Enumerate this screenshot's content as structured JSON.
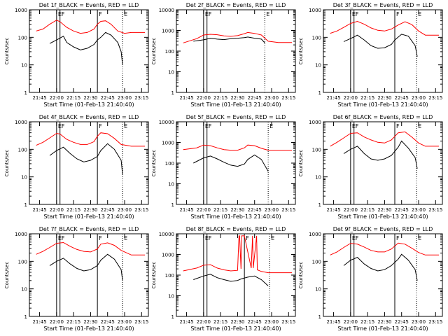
{
  "figure": {
    "x_tick_labels": [
      "21:45",
      "22:00",
      "22:15",
      "22:30",
      "22:45",
      "23:00",
      "23:15"
    ],
    "y_tick_labels": [
      "1",
      "10",
      "100",
      "1000",
      "10000"
    ],
    "ylabel": "Counts/sec",
    "xlabel": "Start Time (01-Feb-13 21:40:40)",
    "line_colors": {
      "events": "#000000",
      "lld": "#ff0000"
    }
  },
  "chart_data": [
    {
      "type": "line",
      "title": "Det 1f_BLACK = Events, RED = LLD",
      "markers": [
        {
          "t": 22.0,
          "label": "E"
        },
        {
          "t": 22.05,
          "label": "F"
        },
        {
          "t": 22.6,
          "label": "F"
        },
        {
          "t": 22.97,
          "label": "E"
        }
      ],
      "xlim": [
        21.6,
        23.35
      ],
      "ylim": [
        1,
        1000
      ],
      "ylabel": "Counts/sec",
      "xlabel": "Start Time (01-Feb-13 21:40:40)",
      "series": [
        {
          "name": "Events",
          "color": "#000000",
          "t": [
            21.9,
            22.0,
            22.1,
            22.15,
            22.25,
            22.35,
            22.45,
            22.55,
            22.6,
            22.65,
            22.72,
            22.8,
            22.9,
            22.95,
            22.97
          ],
          "values": [
            60,
            80,
            110,
            65,
            45,
            35,
            40,
            55,
            80,
            100,
            150,
            120,
            65,
            30,
            10
          ]
        },
        {
          "name": "LLD",
          "color": "#ff0000",
          "t": [
            21.7,
            21.8,
            21.9,
            22.0,
            22.05,
            22.15,
            22.25,
            22.35,
            22.45,
            22.55,
            22.6,
            22.65,
            22.72,
            22.8,
            22.9,
            23.0,
            23.1,
            23.3
          ],
          "values": [
            170,
            200,
            300,
            420,
            370,
            230,
            170,
            140,
            150,
            200,
            300,
            380,
            400,
            300,
            170,
            140,
            150,
            150
          ]
        }
      ]
    },
    {
      "type": "line",
      "title": "Det 2f_BLACK = Events, RED = LLD",
      "markers": [
        {
          "t": 22.0,
          "label": "E"
        },
        {
          "t": 22.05,
          "label": "F"
        },
        {
          "t": 22.9,
          "label": "E"
        }
      ],
      "xlim": [
        21.6,
        23.35
      ],
      "ylim": [
        1,
        10000
      ],
      "ylabel": "Counts/sec",
      "xlabel": "Start Time (01-Feb-13 21:40:40)",
      "series": [
        {
          "name": "Events",
          "color": "#000000",
          "t": [
            21.85,
            22.0,
            22.1,
            22.2,
            22.3,
            22.4,
            22.5,
            22.6,
            22.65,
            22.75,
            22.85,
            22.9
          ],
          "values": [
            300,
            350,
            420,
            380,
            360,
            400,
            420,
            450,
            480,
            420,
            380,
            250
          ]
        },
        {
          "name": "LLD",
          "color": "#ff0000",
          "t": [
            21.7,
            21.9,
            22.0,
            22.1,
            22.2,
            22.3,
            22.4,
            22.5,
            22.6,
            22.65,
            22.75,
            22.85,
            22.95,
            23.1,
            23.3
          ],
          "values": [
            250,
            400,
            600,
            650,
            620,
            550,
            520,
            560,
            700,
            800,
            720,
            600,
            300,
            260,
            260
          ]
        }
      ]
    },
    {
      "type": "line",
      "title": "Det 3f_BLACK = Events, RED = LLD",
      "markers": [
        {
          "t": 22.0,
          "label": "E"
        },
        {
          "t": 22.05,
          "label": "F"
        },
        {
          "t": 22.65,
          "label": "F"
        },
        {
          "t": 22.97,
          "label": "E"
        }
      ],
      "xlim": [
        21.6,
        23.35
      ],
      "ylim": [
        1,
        1000
      ],
      "ylabel": "Counts/sec",
      "xlabel": "Start Time (01-Feb-13 21:40:40)",
      "series": [
        {
          "name": "Events",
          "color": "#000000",
          "t": [
            21.9,
            22.0,
            22.1,
            22.2,
            22.3,
            22.4,
            22.5,
            22.6,
            22.65,
            22.75,
            22.85,
            22.95,
            22.98
          ],
          "values": [
            70,
            90,
            120,
            80,
            50,
            40,
            42,
            55,
            80,
            130,
            110,
            50,
            20
          ]
        },
        {
          "name": "LLD",
          "color": "#ff0000",
          "t": [
            21.7,
            21.8,
            21.9,
            22.0,
            22.1,
            22.2,
            22.3,
            22.4,
            22.5,
            22.6,
            22.7,
            22.8,
            22.9,
            23.0,
            23.1,
            23.3
          ],
          "values": [
            140,
            170,
            230,
            320,
            380,
            300,
            220,
            180,
            170,
            200,
            280,
            370,
            290,
            170,
            120,
            120
          ]
        }
      ]
    },
    {
      "type": "line",
      "title": "Det 4f_BLACK = Events, RED = LLD",
      "markers": [
        {
          "t": 22.0,
          "label": "E"
        },
        {
          "t": 22.05,
          "label": "F"
        },
        {
          "t": 22.6,
          "label": "F"
        },
        {
          "t": 22.97,
          "label": "E"
        }
      ],
      "xlim": [
        21.6,
        23.35
      ],
      "ylim": [
        1,
        1000
      ],
      "ylabel": "Counts/sec",
      "xlabel": "Start Time (01-Feb-13 21:40:40)",
      "series": [
        {
          "name": "Events",
          "color": "#000000",
          "t": [
            21.9,
            22.0,
            22.1,
            22.2,
            22.3,
            22.4,
            22.5,
            22.6,
            22.65,
            22.75,
            22.85,
            22.95,
            22.97
          ],
          "values": [
            60,
            90,
            120,
            70,
            45,
            35,
            40,
            55,
            90,
            160,
            100,
            40,
            12
          ]
        },
        {
          "name": "LLD",
          "color": "#ff0000",
          "t": [
            21.7,
            21.8,
            21.9,
            22.0,
            22.05,
            22.15,
            22.25,
            22.35,
            22.45,
            22.55,
            22.6,
            22.65,
            22.75,
            22.85,
            22.95,
            23.1,
            23.3
          ],
          "values": [
            140,
            180,
            260,
            380,
            360,
            230,
            180,
            150,
            150,
            190,
            300,
            400,
            370,
            250,
            150,
            130,
            130
          ]
        }
      ]
    },
    {
      "type": "line",
      "title": "Det 5f_BLACK = Events, RED = LLD",
      "markers": [
        {
          "t": 22.0,
          "label": "E"
        },
        {
          "t": 22.05,
          "label": "F"
        },
        {
          "t": 22.95,
          "label": "E"
        }
      ],
      "xlim": [
        21.6,
        23.35
      ],
      "ylim": [
        1,
        10000
      ],
      "ylabel": "Counts/sec",
      "xlabel": "Start Time (01-Feb-13 21:40:40)",
      "series": [
        {
          "name": "Events",
          "color": "#000000",
          "t": [
            21.85,
            22.0,
            22.1,
            22.2,
            22.3,
            22.4,
            22.5,
            22.6,
            22.65,
            22.75,
            22.85,
            22.95
          ],
          "values": [
            100,
            180,
            220,
            160,
            110,
            80,
            70,
            90,
            150,
            250,
            150,
            40
          ]
        },
        {
          "name": "LLD",
          "color": "#ff0000",
          "t": [
            21.7,
            21.9,
            22.0,
            22.1,
            22.2,
            22.3,
            22.4,
            22.5,
            22.6,
            22.65,
            22.75,
            22.85,
            22.95,
            23.1,
            23.3
          ],
          "values": [
            450,
            550,
            750,
            700,
            550,
            450,
            420,
            420,
            550,
            750,
            700,
            520,
            420,
            420,
            420
          ]
        }
      ]
    },
    {
      "type": "line",
      "title": "Det 6f_BLACK = Events, RED = LLD",
      "markers": [
        {
          "t": 22.0,
          "label": "E"
        },
        {
          "t": 22.05,
          "label": "F"
        },
        {
          "t": 22.65,
          "label": "F"
        },
        {
          "t": 22.97,
          "label": "E"
        }
      ],
      "xlim": [
        21.6,
        23.35
      ],
      "ylim": [
        1,
        1000
      ],
      "ylabel": "Counts/sec",
      "xlabel": "Start Time (01-Feb-13 21:40:40)",
      "series": [
        {
          "name": "Events",
          "color": "#000000",
          "t": [
            21.9,
            22.0,
            22.1,
            22.2,
            22.3,
            22.4,
            22.5,
            22.6,
            22.7,
            22.75,
            22.85,
            22.95,
            22.98
          ],
          "values": [
            70,
            100,
            130,
            70,
            45,
            40,
            45,
            60,
            120,
            200,
            110,
            50,
            20
          ]
        },
        {
          "name": "LLD",
          "color": "#ff0000",
          "t": [
            21.7,
            21.8,
            21.9,
            22.0,
            22.1,
            22.2,
            22.3,
            22.4,
            22.5,
            22.6,
            22.7,
            22.8,
            22.9,
            23.0,
            23.1,
            23.3
          ],
          "values": [
            130,
            180,
            260,
            380,
            400,
            280,
            220,
            180,
            170,
            220,
            400,
            430,
            280,
            170,
            130,
            130
          ]
        }
      ]
    },
    {
      "type": "line",
      "title": "Det 7f_BLACK = Events, RED = LLD",
      "markers": [
        {
          "t": 22.0,
          "label": "E"
        },
        {
          "t": 22.05,
          "label": "F"
        },
        {
          "t": 22.6,
          "label": "F"
        },
        {
          "t": 22.97,
          "label": "E"
        }
      ],
      "xlim": [
        21.6,
        23.35
      ],
      "ylim": [
        1,
        1000
      ],
      "ylabel": "Counts/sec",
      "xlabel": "Start Time (01-Feb-13 21:40:40)",
      "series": [
        {
          "name": "Events",
          "color": "#000000",
          "t": [
            21.9,
            22.0,
            22.1,
            22.2,
            22.3,
            22.4,
            22.5,
            22.6,
            22.65,
            22.75,
            22.85,
            22.95,
            22.97
          ],
          "values": [
            70,
            100,
            130,
            80,
            55,
            45,
            50,
            70,
            110,
            180,
            120,
            50,
            20
          ]
        },
        {
          "name": "LLD",
          "color": "#ff0000",
          "t": [
            21.7,
            21.8,
            21.9,
            22.0,
            22.1,
            22.2,
            22.3,
            22.4,
            22.5,
            22.6,
            22.65,
            22.75,
            22.85,
            22.95,
            23.1,
            23.3
          ],
          "values": [
            180,
            230,
            320,
            450,
            480,
            350,
            270,
            230,
            220,
            280,
            420,
            470,
            380,
            250,
            170,
            170
          ]
        }
      ]
    },
    {
      "type": "line",
      "title": "Det 8f_BLACK = Events, RED = LLD",
      "markers": [
        {
          "t": 22.0,
          "label": "E"
        },
        {
          "t": 22.05,
          "label": "F"
        },
        {
          "t": 22.6,
          "label": "F"
        },
        {
          "t": 22.97,
          "label": "E"
        }
      ],
      "xlim": [
        21.6,
        23.35
      ],
      "ylim": [
        1,
        10000
      ],
      "ylabel": "Counts/sec",
      "xlabel": "Start Time (01-Feb-13 21:40:40)",
      "series": [
        {
          "name": "Events",
          "color": "#000000",
          "t": [
            21.85,
            22.0,
            22.1,
            22.2,
            22.3,
            22.4,
            22.5,
            22.55,
            22.65,
            22.75,
            22.85,
            22.95
          ],
          "values": [
            60,
            90,
            110,
            75,
            60,
            50,
            55,
            65,
            80,
            90,
            60,
            30
          ]
        },
        {
          "name": "LLD",
          "color": "#ff0000",
          "t": [
            21.7,
            21.9,
            22.0,
            22.1,
            22.2,
            22.3,
            22.4,
            22.5,
            22.52,
            22.53,
            22.55,
            22.56,
            22.6,
            22.7,
            22.72,
            22.73,
            22.78,
            22.79,
            22.85,
            22.95,
            23.1,
            23.3
          ],
          "values": [
            160,
            220,
            300,
            320,
            220,
            180,
            160,
            170,
            8000,
            8000,
            200,
            8000,
            8000,
            220,
            8000,
            220,
            8000,
            180,
            150,
            130,
            130,
            130
          ]
        }
      ]
    },
    {
      "type": "line",
      "title": "Det 9f_BLACK = Events, RED = LLD",
      "markers": [
        {
          "t": 22.0,
          "label": "E"
        },
        {
          "t": 22.05,
          "label": "F"
        },
        {
          "t": 22.65,
          "label": "F"
        },
        {
          "t": 22.97,
          "label": "E"
        }
      ],
      "xlim": [
        21.6,
        23.35
      ],
      "ylim": [
        1,
        1000
      ],
      "ylabel": "Counts/sec",
      "xlabel": "Start Time (01-Feb-13 21:40:40)",
      "series": [
        {
          "name": "Events",
          "color": "#000000",
          "t": [
            21.9,
            22.0,
            22.1,
            22.2,
            22.3,
            22.4,
            22.5,
            22.6,
            22.7,
            22.75,
            22.85,
            22.95,
            22.98
          ],
          "values": [
            70,
            110,
            140,
            80,
            55,
            45,
            50,
            70,
            120,
            180,
            110,
            50,
            20
          ]
        },
        {
          "name": "LLD",
          "color": "#ff0000",
          "t": [
            21.7,
            21.8,
            21.9,
            22.0,
            22.1,
            22.2,
            22.3,
            22.4,
            22.5,
            22.6,
            22.7,
            22.8,
            22.9,
            23.0,
            23.1,
            23.3
          ],
          "values": [
            170,
            220,
            320,
            450,
            420,
            330,
            250,
            220,
            220,
            280,
            460,
            420,
            300,
            210,
            170,
            170
          ]
        }
      ]
    }
  ]
}
